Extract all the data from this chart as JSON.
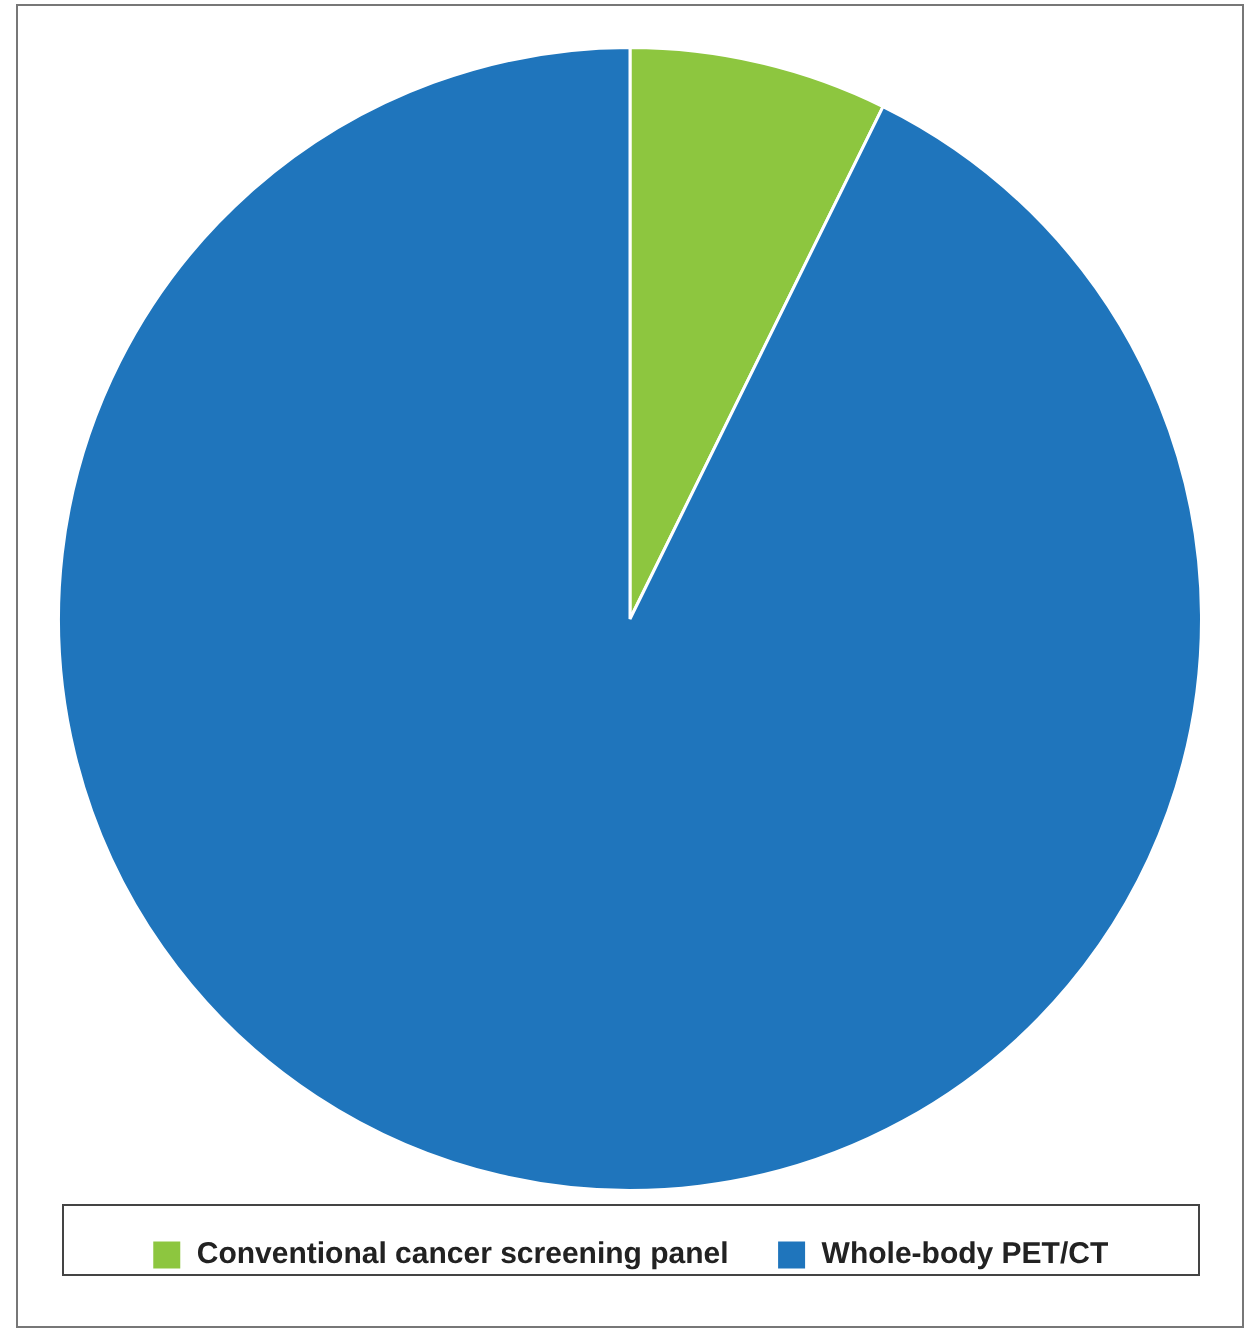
{
  "chart_data": {
    "type": "pie",
    "categories": [
      "Conventional cancer screening panel",
      "Whole-body PET/CT"
    ],
    "values": [
      7.3,
      92.7
    ],
    "colors": [
      "#8dc63f",
      "#1f75bc"
    ],
    "legend": "bottom"
  }
}
